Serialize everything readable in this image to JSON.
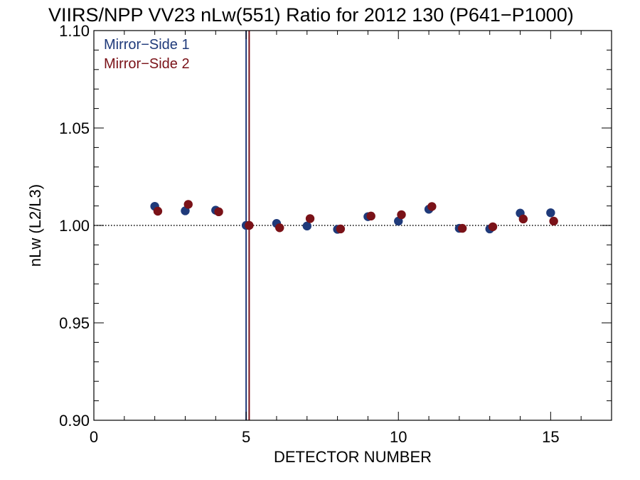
{
  "chart_data": {
    "type": "scatter",
    "title": "VIIRS/NPP VV23 nLw(551) Ratio for 2012 130 (P641−P1000)",
    "xlabel": "DETECTOR NUMBER",
    "ylabel": "nLw (L2/L3)",
    "xlim": [
      0,
      17
    ],
    "ylim": [
      0.9,
      1.1
    ],
    "xticks": [
      0,
      5,
      10,
      15
    ],
    "xtick_labels": [
      "0",
      "5",
      "10",
      "15"
    ],
    "yticks": [
      0.9,
      0.95,
      1.0,
      1.05,
      1.1
    ],
    "ytick_labels": [
      "0.90",
      "0.95",
      "1.00",
      "1.05",
      "1.10"
    ],
    "reference_line": {
      "y": 1.0,
      "style": "dotted"
    },
    "vertical_lines": [
      {
        "x": 5.0,
        "color": "#1f3a7a"
      },
      {
        "x": 5.1,
        "color": "#7a1218"
      }
    ],
    "legend_position": "top-left",
    "series": [
      {
        "name": "Mirror−Side 1",
        "color": "#1f3a7a",
        "x": [
          2,
          3,
          4,
          5,
          6,
          7,
          8,
          9,
          10,
          11,
          12,
          13,
          14,
          15
        ],
        "y": [
          1.0098,
          1.0075,
          1.0078,
          1.0,
          1.001,
          0.9997,
          0.998,
          1.0045,
          1.0022,
          1.0083,
          0.9985,
          0.9982,
          1.0063,
          1.0065
        ]
      },
      {
        "name": "Mirror−Side 2",
        "color": "#7a1218",
        "x": [
          2.1,
          3.1,
          4.1,
          5.1,
          6.1,
          7.1,
          8.1,
          9.1,
          10.1,
          11.1,
          12.1,
          13.1,
          14.1,
          15.1
        ],
        "y": [
          1.0073,
          1.0108,
          1.007,
          1.0,
          0.9988,
          1.0035,
          0.9982,
          1.0048,
          1.0055,
          1.0097,
          0.9985,
          0.9993,
          1.0033,
          1.0022
        ]
      }
    ]
  }
}
